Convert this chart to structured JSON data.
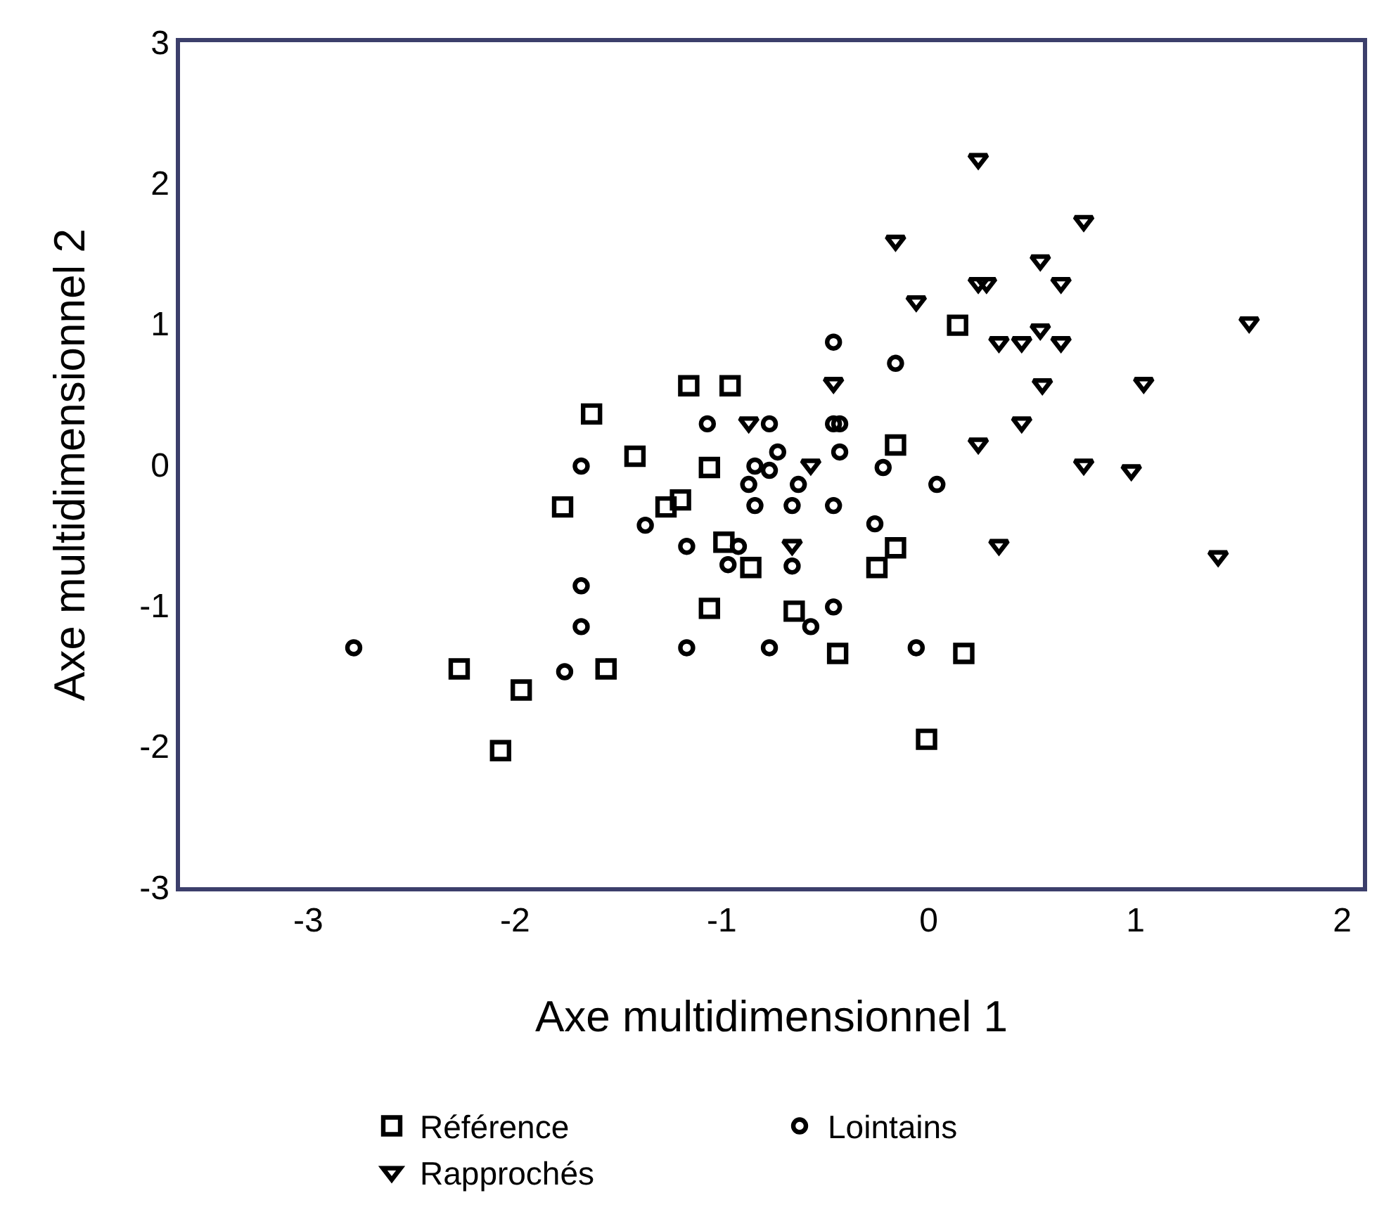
{
  "chart_data": {
    "type": "scatter",
    "xlabel": "Axe multidimensionnel 1",
    "ylabel": "Axe multidimensionnel 2",
    "xlim": [
      -3.62,
      2.1
    ],
    "xticks": [
      -3,
      -2,
      -1,
      0,
      1,
      2
    ],
    "ylim": [
      -3,
      3
    ],
    "yticks": [
      -3,
      -2,
      -1,
      0,
      1,
      2,
      3
    ],
    "legend": "bottom",
    "series": [
      {
        "name": "Référence",
        "color": "#000000",
        "marker": "square",
        "x": [
          -1.16,
          -0.96,
          -1.63,
          -1.42,
          -1.06,
          -1.77,
          -1.27,
          -1.2,
          -0.99,
          -1.06,
          -2.27,
          -1.56,
          -1.97,
          -2.07,
          0.14,
          -0.86,
          -0.25,
          -0.16,
          -0.16,
          -0.65,
          -0.44,
          0.17,
          -0.01
        ],
        "values": [
          0.56,
          0.56,
          0.36,
          0.06,
          -0.02,
          -0.3,
          -0.3,
          -0.25,
          -0.55,
          -1.02,
          -1.45,
          -1.45,
          -1.6,
          -2.03,
          0.99,
          -0.73,
          -0.73,
          0.14,
          -0.59,
          -1.04,
          -1.34,
          -1.34,
          -1.95
        ]
      },
      {
        "name": "Lointains",
        "color": "#000000",
        "marker": "circle",
        "x": [
          -1.07,
          -1.68,
          -1.37,
          -1.17,
          -1.68,
          -1.68,
          -2.78,
          -1.76,
          -1.17,
          -0.92,
          -0.97,
          -0.46,
          -0.16,
          -0.77,
          -0.46,
          -0.43,
          -0.73,
          -0.43,
          -0.84,
          -0.77,
          -0.22,
          -0.87,
          -0.63,
          0.04,
          -0.84,
          -0.66,
          -0.46,
          -0.26,
          -0.66,
          -0.46,
          -0.57,
          -0.77,
          -0.06
        ],
        "values": [
          0.29,
          -0.01,
          -0.43,
          -0.58,
          -0.86,
          -1.15,
          -1.3,
          -1.47,
          -1.3,
          -0.58,
          -0.71,
          0.87,
          0.72,
          0.29,
          0.29,
          0.29,
          0.09,
          0.09,
          -0.01,
          -0.04,
          -0.02,
          -0.14,
          -0.14,
          -0.14,
          -0.29,
          -0.29,
          -0.29,
          -0.42,
          -0.72,
          -1.01,
          -1.15,
          -1.3,
          -1.3
        ]
      },
      {
        "name": "Rapprochés",
        "color": "#000000",
        "marker": "triangle",
        "x": [
          0.24,
          0.75,
          -0.16,
          0.54,
          0.24,
          0.28,
          0.64,
          -0.06,
          0.34,
          0.45,
          0.54,
          0.64,
          1.55,
          -0.46,
          0.55,
          1.04,
          0.45,
          -0.87,
          0.24,
          -0.57,
          0.75,
          0.98,
          -0.66,
          0.34,
          1.4
        ],
        "values": [
          2.17,
          1.73,
          1.59,
          1.45,
          1.29,
          1.29,
          1.29,
          1.16,
          0.87,
          0.87,
          0.96,
          0.87,
          1.01,
          0.58,
          0.57,
          0.58,
          0.3,
          0.3,
          0.15,
          0.0,
          0.0,
          -0.04,
          -0.57,
          -0.57,
          -0.65
        ]
      }
    ]
  }
}
